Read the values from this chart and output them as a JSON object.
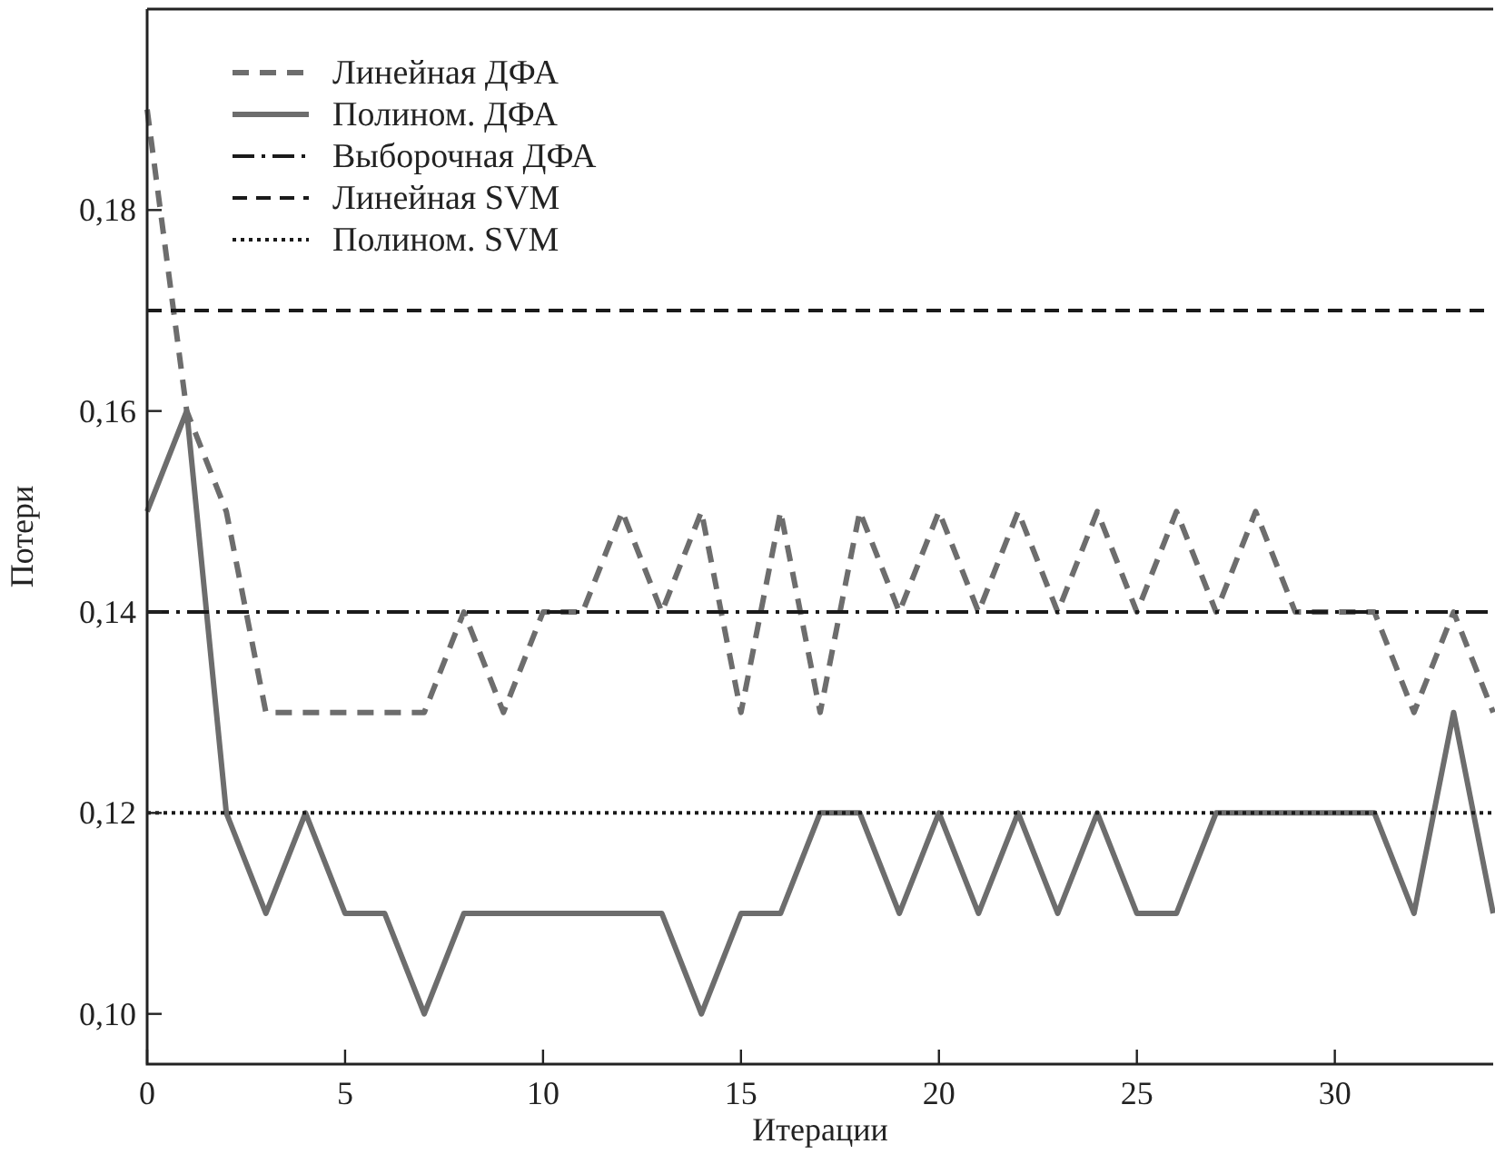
{
  "chart_data": {
    "type": "line",
    "xlabel": "Итерации",
    "ylabel": "Потери",
    "x": [
      0,
      1,
      2,
      3,
      4,
      5,
      6,
      7,
      8,
      9,
      10,
      11,
      12,
      13,
      14,
      15,
      16,
      17,
      18,
      19,
      20,
      21,
      22,
      23,
      24,
      25,
      26,
      27,
      28,
      29,
      30,
      31,
      32,
      33,
      34
    ],
    "series": [
      {
        "name": "Линейная ДФА",
        "color": "#6d6d6d",
        "line_style": "dashed",
        "values": [
          0.19,
          0.16,
          0.15,
          0.13,
          0.13,
          0.13,
          0.13,
          0.13,
          0.14,
          0.13,
          0.14,
          0.14,
          0.15,
          0.14,
          0.15,
          0.13,
          0.15,
          0.13,
          0.15,
          0.14,
          0.15,
          0.14,
          0.15,
          0.14,
          0.15,
          0.14,
          0.15,
          0.14,
          0.15,
          0.14,
          0.14,
          0.14,
          0.13,
          0.14,
          0.13
        ]
      },
      {
        "name": "Полином. ДФА",
        "color": "#6d6d6d",
        "line_style": "solid",
        "values": [
          0.15,
          0.16,
          0.12,
          0.11,
          0.12,
          0.11,
          0.11,
          0.1,
          0.11,
          0.11,
          0.11,
          0.11,
          0.11,
          0.11,
          0.1,
          0.11,
          0.11,
          0.12,
          0.12,
          0.11,
          0.12,
          0.11,
          0.12,
          0.11,
          0.12,
          0.11,
          0.11,
          0.12,
          0.12,
          0.12,
          0.12,
          0.12,
          0.11,
          0.13,
          0.11
        ]
      }
    ],
    "ref_lines": [
      {
        "axis": "y",
        "value": 0.14,
        "label": "Выборочная ДФА",
        "color": "#1a1a1a",
        "line_style": "dashdot"
      },
      {
        "axis": "y",
        "value": 0.17,
        "label": "Линейная SVM",
        "color": "#1a1a1a",
        "line_style": "dashed"
      },
      {
        "axis": "y",
        "value": 0.12,
        "label": "Полином. SVM",
        "color": "#1a1a1a",
        "line_style": "dotted"
      }
    ],
    "xlim": [
      0,
      34
    ],
    "ylim": [
      0.095,
      0.2
    ],
    "xticks": [
      0,
      5,
      10,
      15,
      20,
      25,
      30
    ],
    "yticks": [
      {
        "value": 0.1,
        "label": "0,10"
      },
      {
        "value": 0.12,
        "label": "0,12"
      },
      {
        "value": 0.14,
        "label": "0,14"
      },
      {
        "value": 0.16,
        "label": "0,16"
      },
      {
        "value": 0.18,
        "label": "0,18"
      }
    ],
    "legend": "top left",
    "grid": false,
    "marker": "none"
  }
}
